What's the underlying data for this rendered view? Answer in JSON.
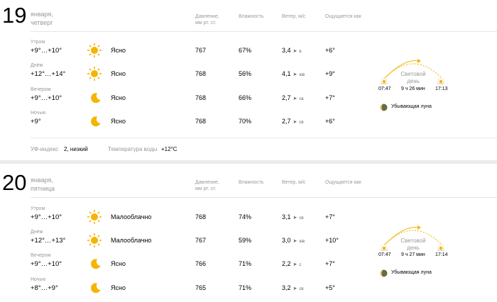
{
  "headers": {
    "pressure": "Давление,\nмм рт. ст.",
    "pressure_l1": "Давление,",
    "pressure_l2": "мм рт. ст.",
    "humidity": "Влажность",
    "wind": "Ветер, м/с",
    "feels": "Ощущается как"
  },
  "days": [
    {
      "date": "19",
      "month": "января,",
      "weekday": "четверг",
      "parts": [
        {
          "period": "Утром",
          "temp": "+9°…+10°",
          "icon": "sun-icon",
          "condition": "Ясно",
          "pressure": "767",
          "humidity": "67%",
          "wind": "3,4",
          "wind_dir": "в",
          "feels": "+6°"
        },
        {
          "period": "Днём",
          "temp": "+12°…+14°",
          "icon": "sun-icon",
          "condition": "Ясно",
          "pressure": "768",
          "humidity": "56%",
          "wind": "4,1",
          "wind_dir": "юв",
          "feels": "+9°"
        },
        {
          "period": "Вечером",
          "temp": "+9°…+10°",
          "icon": "moon-icon",
          "condition": "Ясно",
          "pressure": "768",
          "humidity": "66%",
          "wind": "2,7",
          "wind_dir": "св",
          "feels": "+7°"
        },
        {
          "period": "Ночью",
          "temp": "+9°",
          "icon": "moon-icon",
          "condition": "Ясно",
          "pressure": "768",
          "humidity": "70%",
          "wind": "2,7",
          "wind_dir": "св",
          "feels": "+6°"
        }
      ],
      "daylight": {
        "label_l1": "Световой",
        "label_l2": "день",
        "sunrise": "07:47",
        "duration": "9 ч 26 мин",
        "sunset": "17:13"
      },
      "moon": "Убывающая луна",
      "uv_label": "УФ-индекс",
      "uv_value": "2, низкий",
      "water_label": "Температура воды",
      "water_value": "+12°C"
    },
    {
      "date": "20",
      "month": "января,",
      "weekday": "пятница",
      "parts": [
        {
          "period": "Утром",
          "temp": "+9°…+10°",
          "icon": "sun-icon",
          "condition": "Малооблачно",
          "pressure": "768",
          "humidity": "74%",
          "wind": "3,1",
          "wind_dir": "св",
          "feels": "+7°"
        },
        {
          "period": "Днём",
          "temp": "+12°…+13°",
          "icon": "sun-icon",
          "condition": "Малооблачно",
          "pressure": "767",
          "humidity": "59%",
          "wind": "3,0",
          "wind_dir": "юв",
          "feels": "+10°"
        },
        {
          "period": "Вечером",
          "temp": "+9°…+10°",
          "icon": "moon-icon",
          "condition": "Ясно",
          "pressure": "766",
          "humidity": "71%",
          "wind": "2,2",
          "wind_dir": "с",
          "feels": "+7°"
        },
        {
          "period": "Ночью",
          "temp": "+8°…+9°",
          "icon": "moon-icon",
          "condition": "Ясно",
          "pressure": "765",
          "humidity": "71%",
          "wind": "3,2",
          "wind_dir": "св",
          "feels": "+5°"
        }
      ],
      "daylight": {
        "label_l1": "Световой",
        "label_l2": "день",
        "sunrise": "07:47",
        "duration": "9 ч 27 мин",
        "sunset": "17:14"
      },
      "moon": "Убывающая луна"
    }
  ]
}
